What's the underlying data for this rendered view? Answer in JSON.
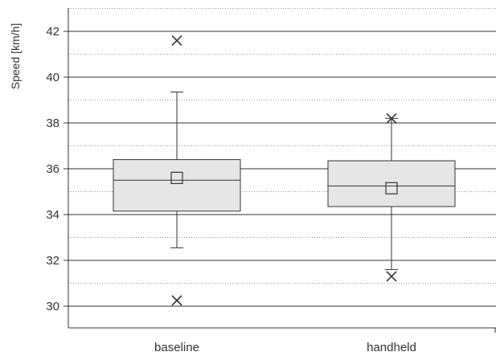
{
  "chart_data": {
    "type": "box",
    "title": "",
    "xlabel": "",
    "ylabel": "Speed [km/h]",
    "ylim": [
      29,
      43
    ],
    "yticks": [
      30,
      32,
      34,
      36,
      38,
      40,
      42
    ],
    "major_grid_step": 2,
    "minor_grid_step": 1,
    "grid": true,
    "legend": "none",
    "categories": [
      "baseline",
      "handheld"
    ],
    "boxes": [
      {
        "name": "baseline",
        "whisker_low": 32.55,
        "q1": 34.15,
        "median": 35.5,
        "q3": 36.4,
        "whisker_high": 39.35,
        "mean": 35.6,
        "outliers": [
          41.6,
          30.25
        ]
      },
      {
        "name": "handheld",
        "whisker_low": 31.6,
        "q1": 34.35,
        "median": 35.25,
        "q3": 36.35,
        "whisker_high": 38.2,
        "mean": 35.15,
        "outliers": [
          38.2,
          31.3
        ]
      }
    ],
    "colors": {
      "box_fill": "#e6e6e6",
      "stroke": "#333333",
      "major_grid": "#333333",
      "minor_grid": "#999999"
    }
  }
}
